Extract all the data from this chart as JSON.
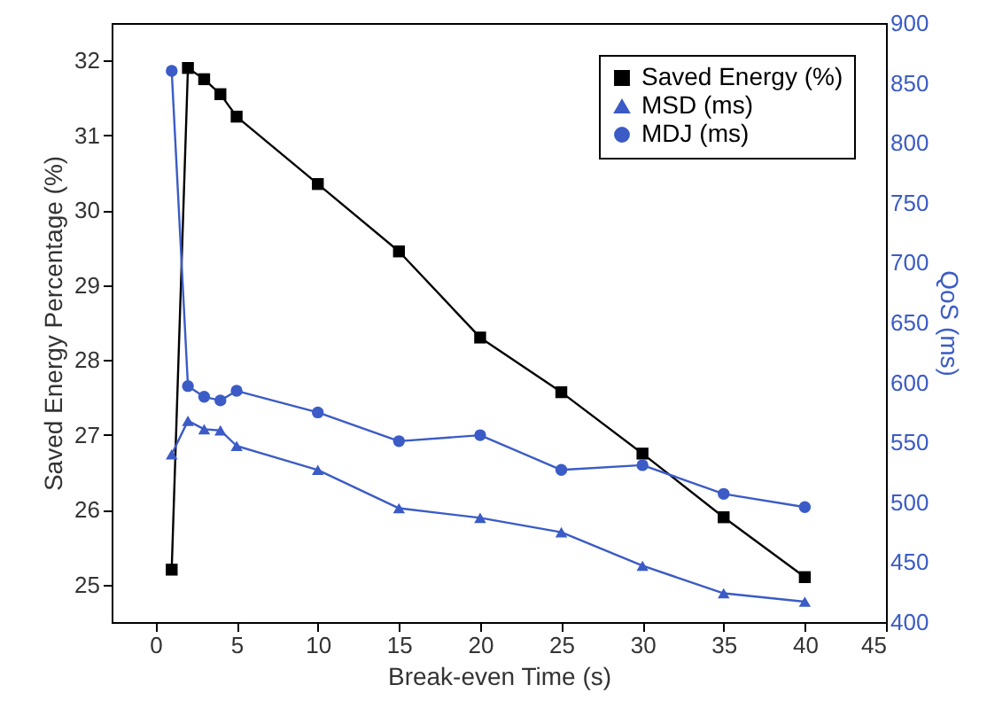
{
  "chart_data": {
    "type": "line",
    "xlabel": "Break-even Time (s)",
    "ylabel": "Saved Energy Percentage (%)",
    "y2label": "QoS (ms)",
    "x": [
      1,
      2,
      3,
      4,
      5,
      10,
      15,
      20,
      25,
      30,
      35,
      40
    ],
    "xlim": [
      -2.7,
      45
    ],
    "xticks": [
      0,
      5,
      10,
      15,
      20,
      25,
      30,
      35,
      40,
      45
    ],
    "ylim": [
      24.5,
      32.5
    ],
    "yticks": [
      25,
      26,
      27,
      28,
      29,
      30,
      31,
      32
    ],
    "y2lim": [
      400,
      900
    ],
    "y2ticks": [
      400,
      450,
      500,
      550,
      600,
      650,
      700,
      750,
      800,
      850,
      900
    ],
    "legend": "top right",
    "grid": false,
    "line_style": "solid",
    "series": [
      {
        "name": "Saved Energy (%)",
        "color": "#000000",
        "marker": "square",
        "values": [
          25.2,
          31.9,
          31.75,
          31.55,
          31.25,
          30.35,
          29.45,
          28.3,
          27.57,
          26.75,
          25.9,
          25.1
        ]
      },
      {
        "name": "MSD (ms)",
        "color": "#3b5bc6",
        "marker": "triangle",
        "axis": "y2",
        "values": [
          540,
          568,
          561,
          560,
          547,
          527,
          495,
          487,
          475,
          447,
          424,
          417
        ]
      },
      {
        "name": "MDJ (ms)",
        "color": "#3b5bc6",
        "marker": "circle",
        "axis": "y2",
        "values": [
          860,
          597,
          588,
          585,
          593,
          575,
          551,
          556,
          527,
          531,
          507,
          496
        ]
      }
    ]
  }
}
